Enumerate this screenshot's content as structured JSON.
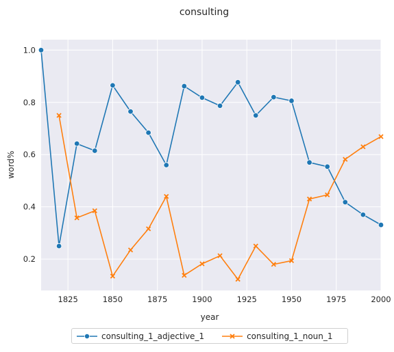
{
  "chart_data": {
    "type": "line",
    "title": "consulting",
    "xlabel": "year",
    "ylabel": "word%",
    "xlim": [
      1810,
      2000
    ],
    "ylim": [
      0.08,
      1.04
    ],
    "x_ticks": [
      1825,
      1850,
      1875,
      1900,
      1925,
      1950,
      1975,
      2000
    ],
    "y_ticks": [
      0.2,
      0.4,
      0.6,
      0.8,
      1.0
    ],
    "x_tick_labels": [
      "1825",
      "1850",
      "1875",
      "1900",
      "1925",
      "1950",
      "1975",
      "2000"
    ],
    "y_tick_labels": [
      "0.2",
      "0.4",
      "0.6",
      "0.8",
      "1.0"
    ],
    "grid": true,
    "legend_position": "bottom-center",
    "x": [
      1810,
      1820,
      1830,
      1840,
      1850,
      1860,
      1870,
      1880,
      1890,
      1900,
      1910,
      1920,
      1930,
      1940,
      1950,
      1960,
      1970,
      1980,
      1990,
      2000
    ],
    "series": [
      {
        "name": "consulting_1_adjective_1",
        "color": "#1f77b4",
        "marker": "circle",
        "values": [
          1.0,
          0.25,
          0.642,
          0.615,
          0.865,
          0.765,
          0.684,
          0.56,
          0.862,
          0.818,
          0.787,
          0.877,
          0.75,
          0.82,
          0.806,
          0.57,
          0.554,
          0.418,
          0.37,
          0.331
        ]
      },
      {
        "name": "consulting_1_noun_1",
        "color": "#ff7f0e",
        "marker": "x",
        "values": [
          null,
          0.75,
          0.358,
          0.385,
          0.135,
          0.235,
          0.316,
          0.44,
          0.138,
          0.182,
          0.213,
          0.123,
          0.25,
          0.18,
          0.194,
          0.43,
          0.446,
          0.582,
          0.63,
          0.669
        ]
      }
    ]
  }
}
